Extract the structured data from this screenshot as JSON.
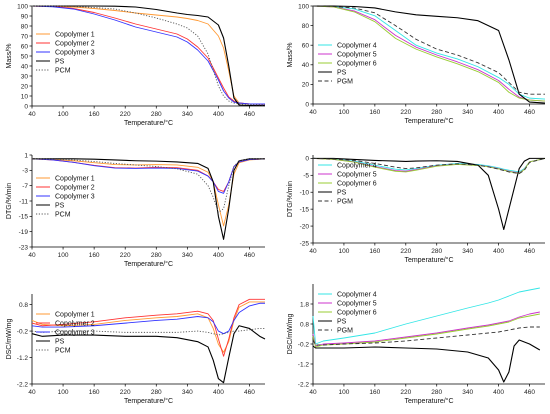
{
  "chart_data": [
    {
      "type": "line",
      "ylabel": "Mass/%",
      "xlabel": "Temperature/°C",
      "xlim": [
        40,
        490
      ],
      "ylim": [
        0,
        100
      ],
      "xticks": [
        40,
        100,
        160,
        220,
        280,
        340,
        400,
        460
      ],
      "yticks": [
        0,
        10,
        20,
        30,
        40,
        50,
        60,
        70,
        80,
        90,
        100
      ],
      "legend_position": "left",
      "x": [
        40,
        80,
        120,
        160,
        200,
        240,
        280,
        320,
        340,
        360,
        380,
        400,
        410,
        420,
        430,
        440,
        460,
        490
      ],
      "series": [
        {
          "name": "Copolymer 1",
          "color": "#ff9933",
          "dash": "solid",
          "values": [
            100,
            99.6,
            99,
            97.5,
            95.5,
            93,
            91,
            89,
            87.5,
            85.5,
            82,
            70,
            58,
            35,
            10,
            3,
            2,
            1.5
          ]
        },
        {
          "name": "Copolymer 2",
          "color": "#ff3333",
          "dash": "solid",
          "values": [
            100,
            99.5,
            97.5,
            93.5,
            88,
            82,
            77,
            72,
            67,
            59,
            48,
            28,
            18,
            9,
            5,
            3,
            2,
            2
          ]
        },
        {
          "name": "Copolymer 3",
          "color": "#3333ff",
          "dash": "solid",
          "values": [
            100,
            99.2,
            97,
            92,
            86,
            79,
            74,
            69,
            64,
            56,
            45,
            26,
            15,
            8,
            4,
            3,
            2,
            2
          ]
        },
        {
          "name": "PS",
          "color": "#000000",
          "dash": "solid",
          "values": [
            100,
            100,
            100,
            100,
            99.8,
            99,
            96.5,
            93,
            91.5,
            90.5,
            89,
            81,
            68,
            40,
            8,
            1,
            0.5,
            0.5
          ]
        },
        {
          "name": "PCM",
          "color": "#555555",
          "dash": "dotted",
          "values": [
            100,
            100,
            99.5,
            98.5,
            97,
            93,
            88,
            82,
            78,
            70,
            52,
            20,
            10,
            5,
            3,
            2,
            1.5,
            1
          ]
        }
      ]
    },
    {
      "type": "line",
      "ylabel": "Mass/%",
      "xlabel": "Temperature/°C",
      "xlim": [
        40,
        490
      ],
      "ylim": [
        0,
        100
      ],
      "xticks": [
        40,
        100,
        160,
        220,
        280,
        340,
        400,
        460
      ],
      "yticks": [
        0,
        20,
        40,
        60,
        80,
        100
      ],
      "legend_position": "left",
      "x": [
        40,
        80,
        120,
        160,
        200,
        240,
        280,
        320,
        360,
        400,
        420,
        440,
        460,
        490
      ],
      "series": [
        {
          "name": "Copolymer 4",
          "color": "#33e6e6",
          "dash": "solid",
          "values": [
            100,
            99.5,
            97,
            90,
            75,
            60,
            52,
            46,
            38,
            27,
            20,
            10,
            6,
            5
          ]
        },
        {
          "name": "Copolymer 5",
          "color": "#cc33cc",
          "dash": "solid",
          "values": [
            100,
            99,
            95,
            86,
            70,
            58,
            50,
            43,
            35,
            24,
            15,
            7,
            4,
            3
          ]
        },
        {
          "name": "Copolymer 6",
          "color": "#99cc33",
          "dash": "solid",
          "values": [
            100,
            99,
            94,
            84,
            67,
            56,
            48,
            41,
            33,
            22,
            12,
            6,
            4,
            3
          ]
        },
        {
          "name": "PS",
          "color": "#000000",
          "dash": "solid",
          "values": [
            100,
            100,
            99.5,
            98,
            94,
            91,
            89.5,
            88,
            85,
            75,
            45,
            10,
            2,
            1
          ]
        },
        {
          "name": "PGM",
          "color": "#333333",
          "dash": "dashed",
          "values": [
            100,
            99.5,
            98,
            93,
            80,
            66,
            56,
            50,
            42,
            32,
            22,
            12,
            10,
            10
          ]
        }
      ]
    },
    {
      "type": "line",
      "ylabel": "DTG/%/min",
      "xlabel": "Temperature/°C",
      "xlim": [
        40,
        490
      ],
      "ylim": [
        -23,
        1
      ],
      "xticks": [
        40,
        100,
        160,
        220,
        280,
        340,
        400,
        460
      ],
      "yticks": [
        1,
        -3,
        -7,
        -11,
        -15,
        -19,
        -23
      ],
      "legend_position": "left",
      "x": [
        40,
        80,
        120,
        160,
        200,
        240,
        280,
        320,
        360,
        380,
        390,
        400,
        410,
        420,
        430,
        440,
        460,
        490
      ],
      "series": [
        {
          "name": "Copolymer 1",
          "color": "#ff9933",
          "dash": "solid",
          "values": [
            0,
            -0.2,
            -0.5,
            -1,
            -1.5,
            -1.6,
            -1.5,
            -1.6,
            -2.2,
            -3.5,
            -6,
            -12,
            -17.5,
            -12,
            -4,
            -1,
            -0.3,
            0
          ]
        },
        {
          "name": "Copolymer 2",
          "color": "#ff3333",
          "dash": "solid",
          "values": [
            0,
            -0.3,
            -0.9,
            -1.7,
            -2.3,
            -2.4,
            -2.2,
            -2.3,
            -3,
            -4.5,
            -6,
            -8,
            -8.5,
            -6,
            -2,
            -0.8,
            -0.2,
            0
          ]
        },
        {
          "name": "Copolymer 3",
          "color": "#3333ff",
          "dash": "solid",
          "values": [
            0,
            -0.3,
            -0.9,
            -1.8,
            -2.4,
            -2.5,
            -2.4,
            -2.5,
            -3.2,
            -4.5,
            -6,
            -8.5,
            -9,
            -6,
            -2,
            -0.8,
            -0.2,
            0
          ]
        },
        {
          "name": "PS",
          "color": "#000000",
          "dash": "solid",
          "values": [
            0,
            0,
            0,
            -0.1,
            -0.3,
            -0.5,
            -0.6,
            -0.8,
            -1.2,
            -2.5,
            -6,
            -15,
            -21,
            -13,
            -3,
            -0.5,
            0,
            0
          ]
        },
        {
          "name": "PCM",
          "color": "#555555",
          "dash": "dotted",
          "values": [
            0,
            -0.1,
            -0.3,
            -0.7,
            -1.2,
            -1.6,
            -2,
            -2.6,
            -4,
            -7,
            -10,
            -14,
            -13,
            -7,
            -2,
            -0.5,
            0,
            0
          ]
        }
      ]
    },
    {
      "type": "line",
      "ylabel": "DTG/%/min",
      "xlabel": "Temperature/°C",
      "xlim": [
        40,
        490
      ],
      "ylim": [
        -25,
        1
      ],
      "xticks": [
        40,
        100,
        160,
        220,
        280,
        340,
        400,
        460
      ],
      "yticks": [
        0,
        -5,
        -10,
        -15,
        -20,
        -25
      ],
      "legend_position": "left",
      "x": [
        40,
        80,
        120,
        160,
        200,
        220,
        240,
        280,
        320,
        360,
        380,
        400,
        410,
        420,
        440,
        450,
        460,
        490
      ],
      "series": [
        {
          "name": "Copolymer 4",
          "color": "#33e6e6",
          "dash": "solid",
          "values": [
            0,
            -0.2,
            -0.8,
            -2,
            -3.2,
            -3.4,
            -3,
            -2,
            -1.5,
            -1.8,
            -2.2,
            -2.8,
            -3.2,
            -3.5,
            -4,
            -3,
            -1,
            0
          ]
        },
        {
          "name": "Copolymer 5",
          "color": "#cc33cc",
          "dash": "solid",
          "values": [
            0,
            -0.3,
            -1,
            -2.4,
            -3.6,
            -3.8,
            -3.3,
            -2.2,
            -1.7,
            -2,
            -2.4,
            -3,
            -3.4,
            -3.8,
            -4.3,
            -3.2,
            -1,
            0
          ]
        },
        {
          "name": "Copolymer 6",
          "color": "#99cc33",
          "dash": "solid",
          "values": [
            0,
            -0.3,
            -1.1,
            -2.6,
            -3.8,
            -4,
            -3.5,
            -2.3,
            -1.8,
            -2.1,
            -2.5,
            -3.1,
            -3.5,
            -3.9,
            -4.4,
            -3.3,
            -1,
            0
          ]
        },
        {
          "name": "PS",
          "color": "#000000",
          "dash": "solid",
          "values": [
            0,
            0,
            -0.3,
            -0.6,
            -0.8,
            -0.9,
            -0.8,
            -0.7,
            -0.9,
            -2,
            -5,
            -15,
            -21,
            -15,
            -3,
            -0.8,
            0,
            0
          ]
        },
        {
          "name": "PGM",
          "color": "#333333",
          "dash": "dashed",
          "values": [
            0,
            -0.2,
            -0.6,
            -1.5,
            -2.6,
            -3,
            -2.8,
            -2,
            -1.6,
            -2,
            -2.5,
            -3.2,
            -3.6,
            -4,
            -4.5,
            -3.5,
            -1.2,
            0
          ]
        }
      ]
    },
    {
      "type": "line",
      "ylabel": "DSC/mW/mg",
      "xlabel": "Temperature/°C",
      "xlim": [
        40,
        490
      ],
      "ylim": [
        -2.2,
        1.2
      ],
      "xticks": [
        40,
        100,
        160,
        220,
        280,
        340,
        400,
        460
      ],
      "yticks": [
        0.8,
        -0.2,
        -1.2,
        -2.2
      ],
      "legend_position": "left",
      "x": [
        40,
        60,
        100,
        160,
        220,
        280,
        320,
        360,
        380,
        390,
        400,
        410,
        420,
        430,
        440,
        460,
        480,
        490
      ],
      "series": [
        {
          "name": "Copolymer 1",
          "color": "#ff9933",
          "dash": "solid",
          "values": [
            0.2,
            0.05,
            0.0,
            0.05,
            0.2,
            0.3,
            0.35,
            0.45,
            0.3,
            -0.1,
            -0.7,
            -1.0,
            -0.6,
            0.2,
            0.7,
            0.9,
            0.9,
            0.9
          ]
        },
        {
          "name": "Copolymer 2",
          "color": "#ff3333",
          "dash": "solid",
          "values": [
            0.1,
            0.0,
            0.05,
            0.15,
            0.3,
            0.4,
            0.45,
            0.55,
            0.45,
            0.2,
            -0.5,
            -1.15,
            -0.5,
            0.3,
            0.8,
            1.0,
            1.0,
            1.0
          ]
        },
        {
          "name": "Copolymer 3",
          "color": "#3333ff",
          "dash": "solid",
          "values": [
            0.0,
            -0.05,
            -0.05,
            0.0,
            0.1,
            0.2,
            0.25,
            0.35,
            0.3,
            0.15,
            -0.2,
            -0.3,
            -0.2,
            0.2,
            0.5,
            0.75,
            0.85,
            0.85
          ]
        },
        {
          "name": "PS",
          "color": "#000000",
          "dash": "solid",
          "values": [
            -0.3,
            -0.4,
            -0.35,
            -0.35,
            -0.4,
            -0.4,
            -0.45,
            -0.6,
            -0.8,
            -1.3,
            -2.0,
            -2.15,
            -1.2,
            -0.3,
            0.0,
            -0.1,
            -0.4,
            -0.5
          ]
        },
        {
          "name": "PCM",
          "color": "#555555",
          "dash": "dotted",
          "values": [
            -0.2,
            -0.25,
            -0.2,
            -0.2,
            -0.25,
            -0.25,
            -0.25,
            -0.2,
            -0.25,
            -0.3,
            -0.35,
            -0.3,
            -0.25,
            -0.2,
            -0.2,
            -0.15,
            -0.1,
            -0.1
          ]
        }
      ]
    },
    {
      "type": "line",
      "ylabel": "DSC/mW/mg",
      "xlabel": "Temperature/°C",
      "xlim": [
        40,
        490
      ],
      "ylim": [
        -2.2,
        2.8
      ],
      "xticks": [
        40,
        100,
        160,
        220,
        280,
        340,
        400,
        460
      ],
      "yticks": [
        1.8,
        0.8,
        -0.2,
        -1.2,
        -2.2
      ],
      "legend_position": "left",
      "x": [
        40,
        45,
        60,
        100,
        160,
        220,
        280,
        340,
        380,
        400,
        410,
        420,
        430,
        440,
        460,
        480
      ],
      "series": [
        {
          "name": "Copolymer 4",
          "color": "#33e6e6",
          "dash": "solid",
          "values": [
            1.2,
            -0.2,
            -0.05,
            0.1,
            0.35,
            0.8,
            1.2,
            1.6,
            1.85,
            2.0,
            2.1,
            2.2,
            2.3,
            2.4,
            2.5,
            2.6
          ]
        },
        {
          "name": "Copolymer 5",
          "color": "#cc33cc",
          "dash": "solid",
          "values": [
            0.3,
            -0.3,
            -0.2,
            -0.15,
            -0.05,
            0.15,
            0.35,
            0.6,
            0.75,
            0.85,
            0.9,
            0.95,
            1.05,
            1.15,
            1.3,
            1.4
          ]
        },
        {
          "name": "Copolymer 6",
          "color": "#99cc33",
          "dash": "solid",
          "values": [
            0.2,
            -0.35,
            -0.25,
            -0.2,
            -0.1,
            0.1,
            0.3,
            0.55,
            0.7,
            0.8,
            0.85,
            0.9,
            1.0,
            1.1,
            1.2,
            1.3
          ]
        },
        {
          "name": "PS",
          "color": "#000000",
          "dash": "solid",
          "values": [
            -0.3,
            -0.4,
            -0.4,
            -0.4,
            -0.35,
            -0.4,
            -0.45,
            -0.6,
            -0.9,
            -1.5,
            -2.1,
            -1.6,
            -0.3,
            0.0,
            -0.2,
            -0.5
          ]
        },
        {
          "name": "PGM",
          "color": "#333333",
          "dash": "dashed",
          "values": [
            0.0,
            -0.25,
            -0.25,
            -0.2,
            -0.15,
            -0.05,
            0.1,
            0.25,
            0.35,
            0.4,
            0.45,
            0.5,
            0.55,
            0.6,
            0.65,
            0.65
          ]
        }
      ]
    }
  ]
}
